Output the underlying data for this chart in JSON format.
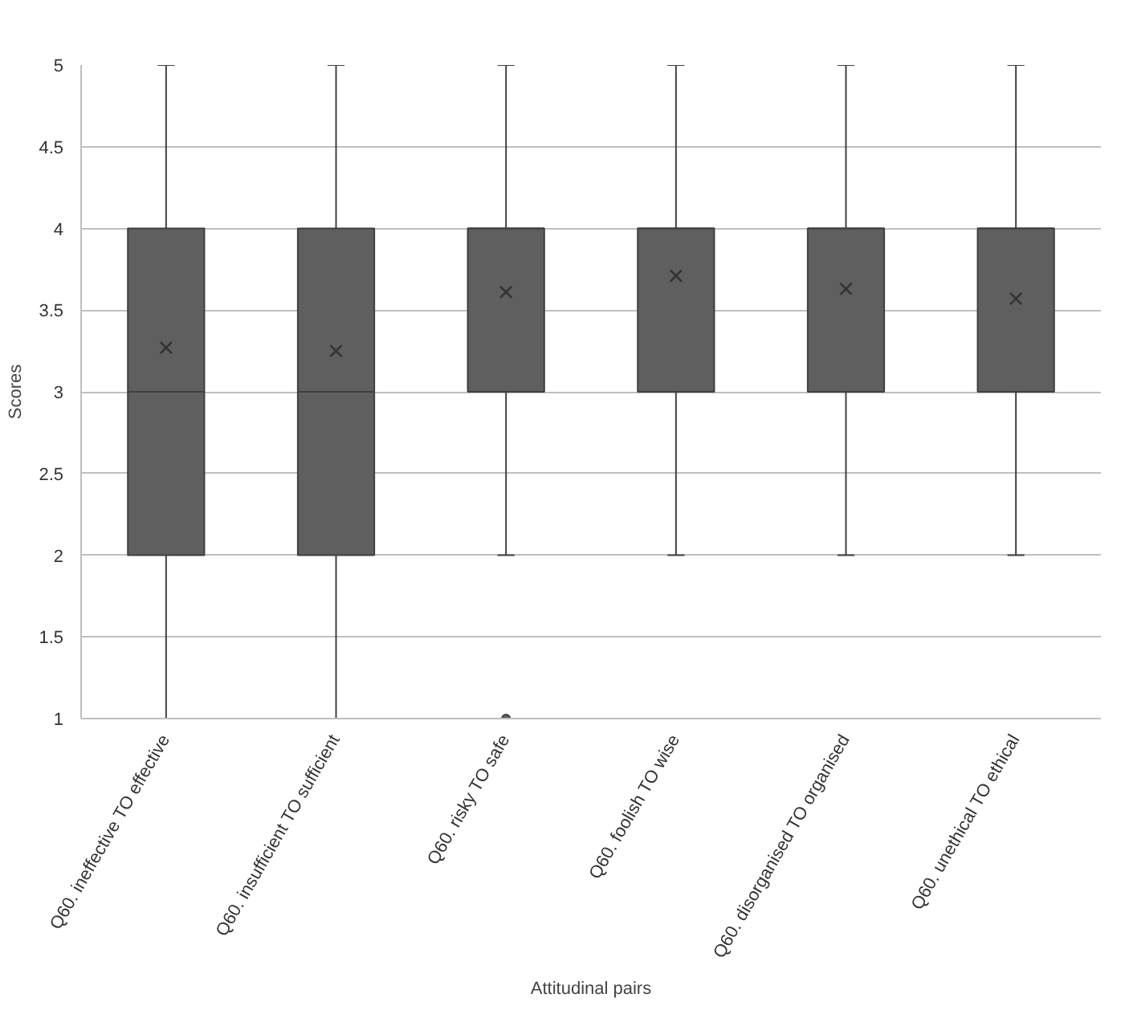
{
  "chart_data": {
    "type": "box",
    "xlabel": "Attitudinal pairs",
    "ylabel": "Scores",
    "categories": [
      "Q60. ineffective TO effective",
      "Q60. insufficient TO sufficient",
      "Q60. risky TO safe",
      "Q60. foolish TO wise",
      "Q60. disorganised TO organised",
      "Q60. unethical TO ethical"
    ],
    "boxes": [
      {
        "low": 1,
        "q1": 2,
        "median": 3,
        "q3": 4,
        "high": 5,
        "mean": 3.27
      },
      {
        "low": 1,
        "q1": 2,
        "median": 3,
        "q3": 4,
        "high": 5,
        "mean": 3.25
      },
      {
        "low": 2,
        "q1": 3,
        "median": 4,
        "q3": 4,
        "high": 5,
        "mean": 3.61,
        "outliers": [
          1
        ]
      },
      {
        "low": 2,
        "q1": 3,
        "median": 4,
        "q3": 4,
        "high": 5,
        "mean": 3.71
      },
      {
        "low": 2,
        "q1": 3,
        "median": 4,
        "q3": 4,
        "high": 5,
        "mean": 3.63
      },
      {
        "low": 2,
        "q1": 3,
        "median": 4,
        "q3": 4,
        "high": 5,
        "mean": 3.57
      }
    ],
    "color": "#5f5f5f",
    "ylim": [
      1,
      5
    ],
    "yticks": [
      1,
      1.5,
      2,
      2.5,
      3,
      3.5,
      4,
      4.5,
      5
    ],
    "grid": "y"
  }
}
